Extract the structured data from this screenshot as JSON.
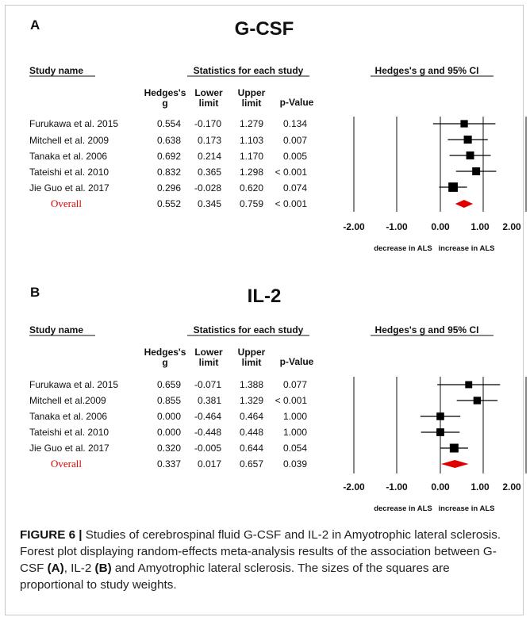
{
  "panels": [
    {
      "letter": "A",
      "title": "G-CSF",
      "headers": {
        "study_name": "Study name",
        "stats_group": "Statistics for each study",
        "plot_group": "Hedges's g and 95% CI",
        "hedges_line1": "Hedges's",
        "hedges_line2": "g",
        "lower_line1": "Lower",
        "lower_line2": "limit",
        "upper_line1": "Upper",
        "upper_line2": "limit",
        "pvalue": "p-Value"
      },
      "rows": [
        {
          "study": "Furukawa et al. 2015",
          "g": "0.554",
          "lower": "-0.170",
          "upper": "1.279",
          "p": "0.134"
        },
        {
          "study": "Mitchell et al. 2009",
          "g": "0.638",
          "lower": "0.173",
          "upper": "1.103",
          "p": "0.007"
        },
        {
          "study": "Tanaka et al. 2006",
          "g": "0.692",
          "lower": "0.214",
          "upper": "1.170",
          "p": "0.005"
        },
        {
          "study": "Tateishi et al. 2010",
          "g": "0.832",
          "lower": "0.365",
          "upper": "1.298",
          "p": "< 0.001"
        },
        {
          "study": "Jie Guo et al. 2017",
          "g": "0.296",
          "lower": "-0.028",
          "upper": "0.620",
          "p": "0.074"
        }
      ],
      "overall": {
        "study": "Overall",
        "g": "0.552",
        "lower": "0.345",
        "upper": "0.759",
        "p": "< 0.001"
      },
      "axis_ticks": [
        "-2.00",
        "-1.00",
        "0.00",
        "1.00",
        "2.00"
      ],
      "decrease_label": "decrease in ALS",
      "increase_label": "increase in ALS"
    },
    {
      "letter": "B",
      "title": "IL-2",
      "headers": {
        "study_name": "Study name",
        "stats_group": "Statistics for each study",
        "plot_group": "Hedges's g and 95% CI",
        "hedges_line1": "Hedges's",
        "hedges_line2": "g",
        "lower_line1": "Lower",
        "lower_line2": "limit",
        "upper_line1": "Upper",
        "upper_line2": "limit",
        "pvalue": "p-Value"
      },
      "rows": [
        {
          "study": "Furukawa et al. 2015",
          "g": "0.659",
          "lower": "-0.071",
          "upper": "1.388",
          "p": "0.077"
        },
        {
          "study": "Mitchell et al.2009",
          "g": "0.855",
          "lower": "0.381",
          "upper": "1.329",
          "p": "< 0.001"
        },
        {
          "study": "Tanaka et al. 2006",
          "g": "0.000",
          "lower": "-0.464",
          "upper": "0.464",
          "p": "1.000"
        },
        {
          "study": "Tateishi et al. 2010",
          "g": "0.000",
          "lower": "-0.448",
          "upper": "0.448",
          "p": "1.000"
        },
        {
          "study": "Jie Guo et al. 2017",
          "g": "0.320",
          "lower": "-0.005",
          "upper": "0.644",
          "p": "0.054"
        }
      ],
      "overall": {
        "study": "Overall",
        "g": "0.337",
        "lower": "0.017",
        "upper": "0.657",
        "p": "0.039"
      },
      "axis_ticks": [
        "-2.00",
        "-1.00",
        "0.00",
        "1.00",
        "2.00"
      ],
      "decrease_label": "decrease in ALS",
      "increase_label": "increase in ALS"
    }
  ],
  "caption": {
    "label": "FIGURE 6 |",
    "part1": " Studies of cerebrospinal fluid G-CSF and IL-2 in Amyotrophic lateral sclerosis. Forest plot displaying random-effects meta-analysis results of the association between G-CSF ",
    "ref_a": "(A)",
    "part2": ", IL-2 ",
    "ref_b": "(B)",
    "part3": " and Amyotrophic lateral sclerosis. The sizes of the squares are proportional to study weights."
  },
  "colors": {
    "overall": "#e00000",
    "marks": "#000000"
  },
  "chart_data": [
    {
      "type": "forest",
      "title": "G-CSF",
      "xlim": [
        -2,
        2
      ],
      "x_ticks": [
        -2,
        -1,
        0,
        1,
        2
      ],
      "grid": false,
      "studies": [
        {
          "name": "Furukawa et al. 2015",
          "g": 0.554,
          "lower": -0.17,
          "upper": 1.279,
          "p": "0.134",
          "weight": 0.14
        },
        {
          "name": "Mitchell et al. 2009",
          "g": 0.638,
          "lower": 0.173,
          "upper": 1.103,
          "p": "0.007",
          "weight": 0.19
        },
        {
          "name": "Tanaka et al. 2006",
          "g": 0.692,
          "lower": 0.214,
          "upper": 1.17,
          "p": "0.005",
          "weight": 0.18
        },
        {
          "name": "Tateishi et al. 2010",
          "g": 0.832,
          "lower": 0.365,
          "upper": 1.298,
          "p": "< 0.001",
          "weight": 0.18
        },
        {
          "name": "Jie Guo et al. 2017",
          "g": 0.296,
          "lower": -0.028,
          "upper": 0.62,
          "p": "0.074",
          "weight": 0.31
        }
      ],
      "overall": {
        "name": "Overall",
        "g": 0.552,
        "lower": 0.345,
        "upper": 0.759,
        "p": "< 0.001"
      }
    },
    {
      "type": "forest",
      "title": "IL-2",
      "xlim": [
        -2,
        2
      ],
      "x_ticks": [
        -2,
        -1,
        0,
        1,
        2
      ],
      "grid": false,
      "studies": [
        {
          "name": "Furukawa et al. 2015",
          "g": 0.659,
          "lower": -0.071,
          "upper": 1.388,
          "p": "0.077",
          "weight": 0.12
        },
        {
          "name": "Mitchell et al.2009",
          "g": 0.855,
          "lower": 0.381,
          "upper": 1.329,
          "p": "< 0.001",
          "weight": 0.15
        },
        {
          "name": "Tanaka et al. 2006",
          "g": 0.0,
          "lower": -0.464,
          "upper": 0.464,
          "p": "1.000",
          "weight": 0.16
        },
        {
          "name": "Tateishi et al. 2010",
          "g": 0.0,
          "lower": -0.448,
          "upper": 0.448,
          "p": "1.000",
          "weight": 0.17
        },
        {
          "name": "Jie Guo et al. 2017",
          "g": 0.32,
          "lower": -0.005,
          "upper": 0.644,
          "p": "0.054",
          "weight": 0.25
        }
      ],
      "overall": {
        "name": "Overall",
        "g": 0.337,
        "lower": 0.017,
        "upper": 0.657,
        "p": "0.039"
      }
    }
  ]
}
